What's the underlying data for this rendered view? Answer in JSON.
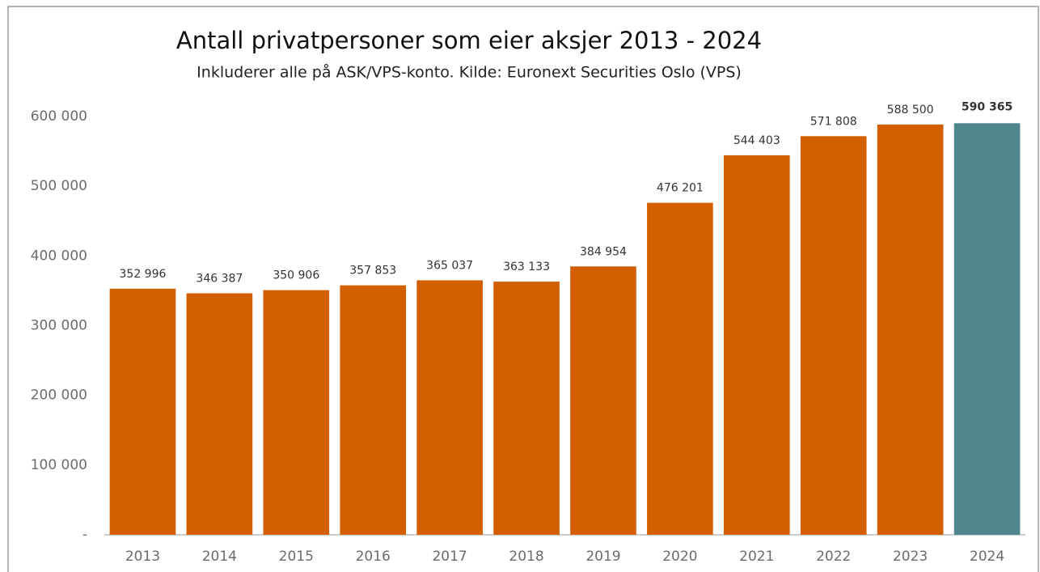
{
  "chart_data": {
    "type": "bar",
    "title": "Antall privatpersoner som eier aksjer 2013 - 2024",
    "subtitle": "Inkluderer alle på ASK/VPS-konto. Kilde: Euronext Securities Oslo (VPS)",
    "categories": [
      "2013",
      "2014",
      "2015",
      "2016",
      "2017",
      "2018",
      "2019",
      "2020",
      "2021",
      "2022",
      "2023",
      "2024"
    ],
    "values": [
      352996,
      346387,
      350906,
      357853,
      365037,
      363133,
      384954,
      476201,
      544403,
      571808,
      588500,
      590365
    ],
    "value_labels": [
      "352 996",
      "346 387",
      "350 906",
      "357 853",
      "365 037",
      "363 133",
      "384 954",
      "476 201",
      "544 403",
      "571 808",
      "588 500",
      "590 365"
    ],
    "colors": [
      "#d45f00",
      "#d45f00",
      "#d45f00",
      "#d45f00",
      "#d45f00",
      "#d45f00",
      "#d45f00",
      "#d45f00",
      "#d45f00",
      "#d45f00",
      "#d45f00",
      "#4f868c"
    ],
    "ylim": [
      0,
      600000
    ],
    "yticks": [
      {
        "value": 0,
        "label": "-"
      },
      {
        "value": 100000,
        "label": "100 000"
      },
      {
        "value": 200000,
        "label": "200 000"
      },
      {
        "value": 300000,
        "label": "300 000"
      },
      {
        "value": 400000,
        "label": "400 000"
      },
      {
        "value": 500000,
        "label": "500 000"
      },
      {
        "value": 600000,
        "label": "600 000"
      }
    ]
  }
}
